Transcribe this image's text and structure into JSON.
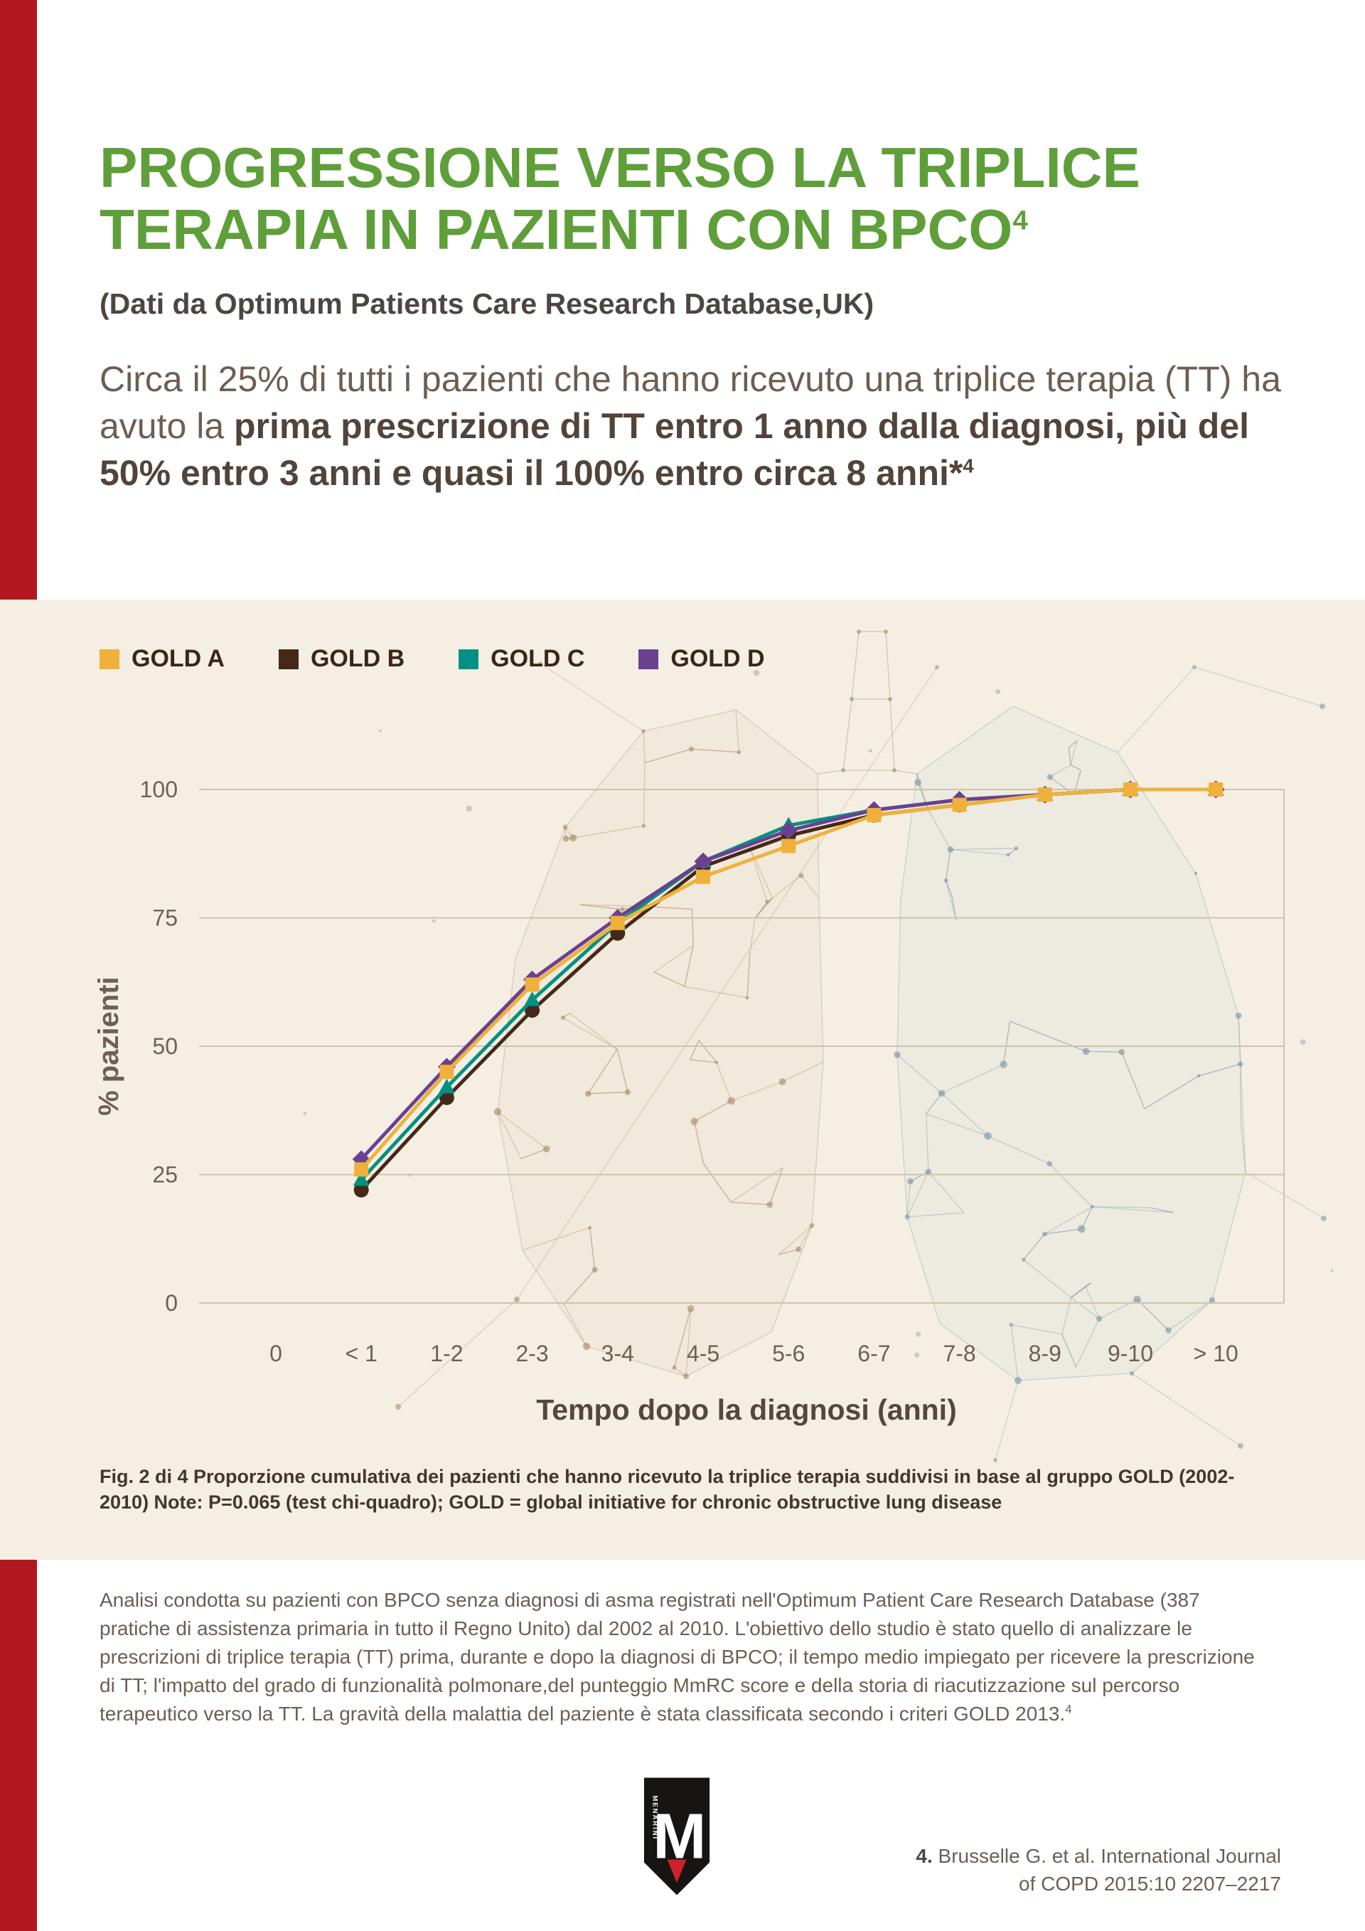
{
  "page": {
    "accent_red": "#b2181e",
    "title_green": "#5e9f3a",
    "panel_beige": "#f5efe3",
    "grid_color": "#cfc3ae",
    "body_text_color": "#6e5e50"
  },
  "header": {
    "title_line1": "PROGRESSIONE VERSO LA TRIPLICE",
    "title_line2": "TERAPIA IN PAZIENTI CON BPCO",
    "title_sup": "4",
    "subtitle": "(Dati da Optimum Patients Care Research Database,UK)"
  },
  "intro": {
    "normal_text": "Circa il 25% di tutti i pazienti che hanno ricevuto una triplice terapia (TT) ha avuto la ",
    "bold_text": "prima prescrizione di TT entro 1 anno dalla diagnosi, più del 50% entro 3 anni e quasi il 100% entro circa 8 anni*",
    "bold_sup": "4"
  },
  "chart_data": {
    "type": "line",
    "categories": [
      "0",
      "< 1",
      "1-2",
      "2-3",
      "3-4",
      "4-5",
      "5-6",
      "6-7",
      "7-8",
      "8-9",
      "9-10",
      "> 10"
    ],
    "series": [
      {
        "name": "GOLD A",
        "color": "#efb13c",
        "marker": "square",
        "values": [
          null,
          26,
          45,
          62,
          74,
          83,
          89,
          95,
          97,
          99,
          100,
          100
        ]
      },
      {
        "name": "GOLD B",
        "color": "#45281a",
        "marker": "circle",
        "values": [
          null,
          22,
          40,
          57,
          72,
          85,
          91,
          95,
          97,
          99,
          100,
          100
        ]
      },
      {
        "name": "GOLD C",
        "color": "#009182",
        "marker": "triangle",
        "values": [
          null,
          24,
          42,
          59,
          74,
          86,
          93,
          96,
          98,
          99,
          100,
          100
        ]
      },
      {
        "name": "GOLD D",
        "color": "#6a4190",
        "marker": "diamond",
        "values": [
          null,
          28,
          46,
          63,
          75,
          86,
          92,
          96,
          98,
          99,
          100,
          100
        ]
      }
    ],
    "xlabel": "Tempo dopo la diagnosi (anni)",
    "ylabel": "% pazienti",
    "yticks": [
      0,
      25,
      50,
      75,
      100
    ],
    "ylim": [
      0,
      100
    ],
    "grid": true,
    "legend_position": "top-left"
  },
  "caption": {
    "text": "Fig. 2 di 4 Proporzione cumulativa dei pazienti che hanno ricevuto la triplice terapia suddivisi in base al gruppo GOLD (2002-2010) Note: P=0.065 (test chi-quadro); GOLD = global initiative for chronic obstructive lung disease"
  },
  "footnote": {
    "text": "Analisi condotta su pazienti con BPCO senza diagnosi di asma registrati nell'Optimum Patient Care Research Database (387 pratiche di assistenza primaria in tutto il Regno Unito) dal 2002 al 2010. L'obiettivo dello studio è stato quello di analizzare le prescrizioni di triplice terapia (TT) prima, durante e dopo la diagnosi di BPCO; il tempo medio impiegato per ricevere la prescrizione di TT; l'impatto del grado di funzionalità polmonare,del punteggio MmRC score e della storia di riacutizzazione sul percorso terapeutico verso la TT. La gravità della malattia del paziente è stata classificata secondo i criteri GOLD 2013.",
    "sup": "4"
  },
  "logo": {
    "letter": "M",
    "vertical_text": "MENARINI"
  },
  "reference": {
    "number": "4.",
    "line1": "Brusselle G. et al. International Journal",
    "line2": "of COPD 2015:10 2207–2217"
  }
}
